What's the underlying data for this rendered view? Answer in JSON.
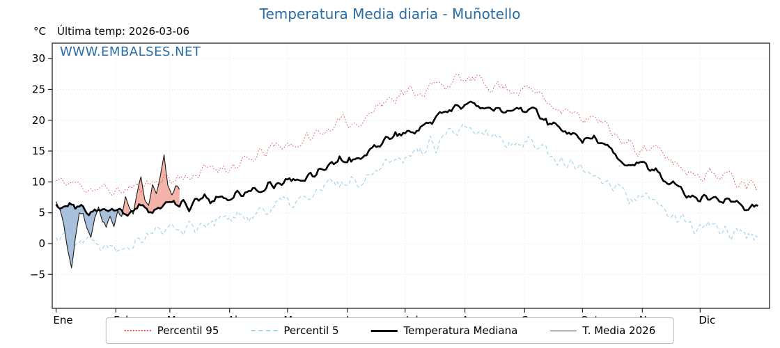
{
  "chart_data": {
    "type": "line",
    "title": "Temperatura Media diaria - Muñotello",
    "title_color": "#2a6ca6",
    "watermark": "WWW.EMBALSES.NET",
    "watermark_color": "#2a6ca6",
    "ylabel": "°C",
    "last_temp_label": "Última temp: 2026-03-06",
    "xlabel": "",
    "x_tick_labels": [
      "Ene",
      "Feb",
      "Mar",
      "Abr",
      "May",
      "Jun",
      "Jul",
      "Ago",
      "Sep",
      "Oct",
      "Nov",
      "Dic"
    ],
    "month_start_days": [
      0,
      31,
      59,
      90,
      120,
      151,
      181,
      212,
      243,
      273,
      304,
      334,
      365
    ],
    "y_ticks": [
      -5,
      0,
      5,
      10,
      15,
      20,
      25,
      30
    ],
    "ylim": [
      -10.5,
      32.5
    ],
    "xlim": [
      -2,
      370
    ],
    "grid": true,
    "legend_position": "bottom",
    "fill_above": "rgba(231,86,65,0.45)",
    "fill_below": "rgba(93,139,188,0.55)",
    "series": [
      {
        "name": "Percentil 95",
        "style": "dotted",
        "color": "#e34a4a",
        "width": 1,
        "dash": "1.5 2.6",
        "jitter": 1.0,
        "seed": 11,
        "monthly_values": [
          10,
          8.5,
          10.5,
          12.5,
          16,
          19.5,
          24.5,
          26.5,
          25,
          20.5,
          15.5,
          11.5,
          10
        ]
      },
      {
        "name": "Percentil 5",
        "style": "dashed",
        "color": "#a6d6e8",
        "width": 1.2,
        "dash": "5 3.5",
        "jitter": 1.1,
        "seed": 22,
        "monthly_values": [
          1.5,
          0,
          2.5,
          4,
          6.5,
          10,
          14.5,
          18,
          16.5,
          12,
          7,
          2.5,
          1.5
        ]
      },
      {
        "name": "Temperatura Mediana",
        "style": "solid",
        "color": "#000000",
        "width": 2.6,
        "dash": "",
        "jitter": 0.7,
        "seed": 33,
        "monthly_values": [
          6,
          5,
          6,
          7.5,
          10,
          13.5,
          18,
          22.5,
          21.5,
          17,
          12.5,
          7.5,
          6
        ]
      },
      {
        "name": "T. Media 2026",
        "style": "solid",
        "color": "#1a1a1a",
        "width": 1.1,
        "dash": "",
        "jitter": 0.35,
        "seed": 44,
        "kind": "partial",
        "days": [
          0,
          2,
          4,
          6,
          8,
          10,
          12,
          14,
          16,
          18,
          20,
          22,
          24,
          26,
          28,
          30,
          32,
          34,
          36,
          38,
          40,
          42,
          44,
          46,
          48,
          50,
          52,
          54,
          56,
          58,
          60,
          62,
          64
        ],
        "values": [
          7,
          5.5,
          3,
          -1,
          -4,
          1,
          4.5,
          5,
          2.5,
          1,
          4,
          6,
          3.5,
          2.5,
          4.5,
          3,
          5.5,
          4.5,
          7.5,
          6,
          5,
          8,
          10.5,
          7,
          6,
          9.5,
          8,
          11,
          14.5,
          9.5,
          8,
          9.5,
          8.5
        ]
      }
    ]
  }
}
